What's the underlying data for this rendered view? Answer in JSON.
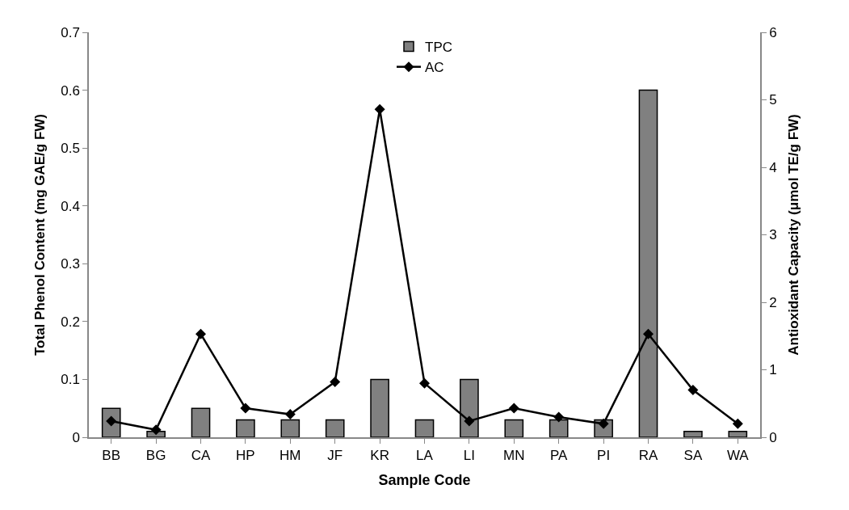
{
  "chart_data": {
    "type": "bar",
    "xlabel": "Sample Code",
    "ylabel": "Total Phenol Content (mg GAE/g FW)",
    "y2label": "Antioxidant Capacity (μmol TE/g FW)",
    "categories": [
      "BB",
      "BG",
      "CA",
      "HP",
      "HM",
      "JF",
      "KR",
      "LA",
      "LI",
      "MN",
      "PA",
      "PI",
      "RA",
      "SA",
      "WA"
    ],
    "series": [
      {
        "name": "TPC",
        "color": "#808080",
        "values": [
          0.05,
          0.01,
          0.05,
          0.03,
          0.03,
          0.03,
          0.1,
          0.03,
          0.1,
          0.03,
          0.03,
          0.03,
          0.6,
          0.01,
          0.01
        ]
      },
      {
        "name": "AC",
        "type": "line",
        "axis": "y2",
        "color": "#000000",
        "marker": "diamond",
        "values": [
          0.24,
          0.11,
          1.53,
          0.43,
          0.34,
          0.82,
          4.86,
          0.8,
          0.24,
          0.43,
          0.3,
          0.2,
          1.53,
          0.7,
          0.2
        ]
      }
    ],
    "ylim": [
      0,
      0.7
    ],
    "yticks": [
      0,
      0.1,
      0.2,
      0.3,
      0.4,
      0.5,
      0.6,
      0.7
    ],
    "y2lim": [
      0,
      6
    ],
    "y2ticks": [
      0,
      1,
      2,
      3,
      4,
      5,
      6
    ],
    "legend": "top"
  }
}
